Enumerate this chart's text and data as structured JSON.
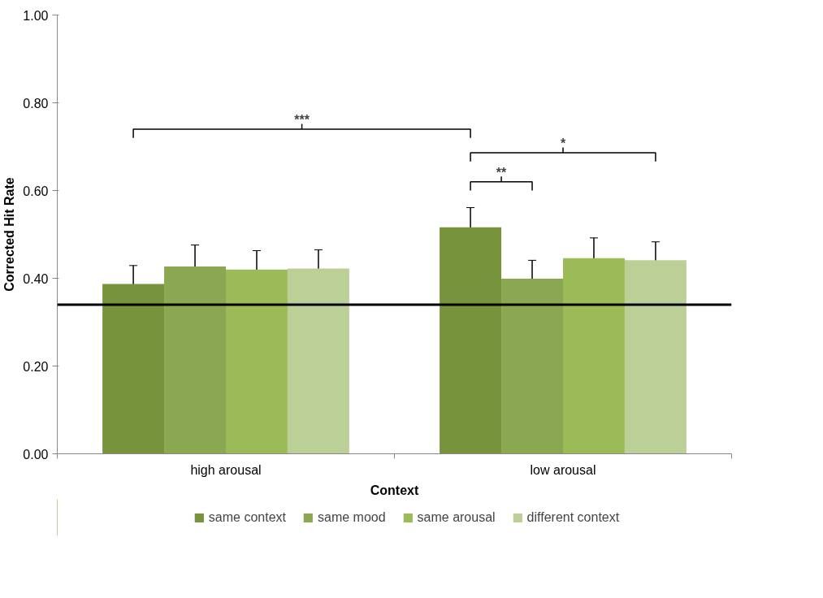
{
  "chart_data": {
    "type": "bar",
    "xlabel": "Context",
    "ylabel": "Corrected Hit Rate",
    "categories": [
      "high arousal",
      "low arousal"
    ],
    "series": [
      {
        "name": "same context",
        "color": "#77933c",
        "values": [
          0.387,
          0.516
        ],
        "errors": [
          0.042,
          0.045
        ]
      },
      {
        "name": "same mood",
        "color": "#8aa851",
        "values": [
          0.427,
          0.399
        ],
        "errors": [
          0.049,
          0.042
        ]
      },
      {
        "name": "same arousal",
        "color": "#9bbb59",
        "values": [
          0.42,
          0.446
        ],
        "errors": [
          0.043,
          0.046
        ]
      },
      {
        "name": "different context",
        "color": "#bbcf96",
        "values": [
          0.422,
          0.441
        ],
        "errors": [
          0.043,
          0.042
        ]
      }
    ],
    "ylim": [
      0,
      1
    ],
    "yticks": [
      {
        "value": 0,
        "label": "0.00"
      },
      {
        "value": 0.2,
        "label": "0.20"
      },
      {
        "value": 0.4,
        "label": "0.40"
      },
      {
        "value": 0.6,
        "label": "0.60"
      },
      {
        "value": 0.8,
        "label": "0.80"
      },
      {
        "value": 1,
        "label": "1.00"
      }
    ],
    "ref_lines": [
      {
        "axis": "y",
        "value": 0.34,
        "color": "#000000"
      }
    ],
    "annotations": [
      "***",
      "**",
      "*"
    ],
    "grid": false,
    "legend": "bottom"
  }
}
